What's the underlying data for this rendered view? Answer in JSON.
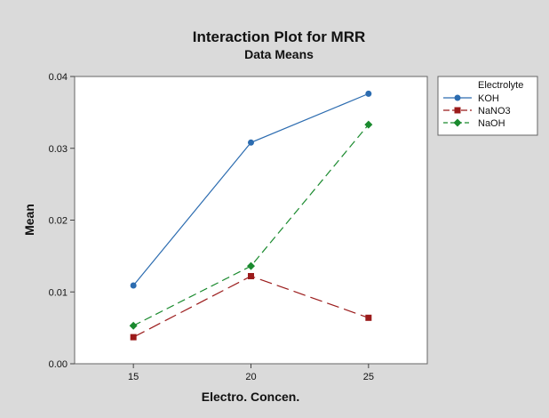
{
  "chart_data": {
    "type": "line",
    "title": "Interaction Plot for MRR",
    "subtitle": "Data Means",
    "xlabel": "Electro. Concen.",
    "ylabel": "Mean",
    "categories": [
      "15",
      "20",
      "25"
    ],
    "x": [
      15,
      20,
      25
    ],
    "xlim": [
      12.5,
      27.5
    ],
    "ylim": [
      0,
      0.04
    ],
    "yticks": [
      0,
      0.01,
      0.02,
      0.03,
      0.04
    ],
    "ytick_labels": [
      "0.00",
      "0.01",
      "0.02",
      "0.03",
      "0.04"
    ],
    "grid": false,
    "legend_title": "Electrolyte",
    "legend_position": "top-right, outside plot",
    "series": [
      {
        "name": "KOH",
        "values": [
          0.0109,
          0.0308,
          0.0376
        ],
        "color": "#2c6cb0",
        "line_style": "solid",
        "marker": "circle"
      },
      {
        "name": "NaNO3",
        "values": [
          0.0037,
          0.0122,
          0.0064
        ],
        "color": "#9b1b1b",
        "line_style": "long-dash",
        "marker": "square"
      },
      {
        "name": "NaOH",
        "values": [
          0.0053,
          0.0136,
          0.0333
        ],
        "color": "#1a8a2e",
        "line_style": "dash",
        "marker": "diamond"
      }
    ]
  }
}
